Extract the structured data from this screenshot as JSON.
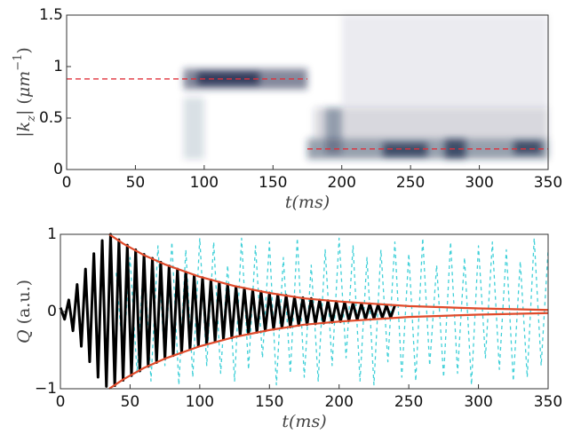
{
  "chart_data": [
    {
      "type": "heatmap",
      "xlabel": [
        {
          "text": "t(ms)",
          "italic": true
        }
      ],
      "ylabel": [
        {
          "text": "|k",
          "italic": true
        },
        {
          "text": "z",
          "italic": true,
          "shift": "sub"
        },
        {
          "text": "| (",
          "italic": false
        },
        {
          "text": "μm",
          "italic": true
        },
        {
          "text": "−1",
          "italic": false,
          "shift": "super"
        },
        {
          "text": ")",
          "italic": false
        }
      ],
      "xlim": [
        0,
        350
      ],
      "xticks": [
        0,
        50,
        100,
        150,
        200,
        250,
        300,
        350
      ],
      "ylim": [
        0,
        1.5
      ],
      "yticks": [
        0,
        0.5,
        1,
        1.5
      ],
      "color": "#1c2b4c",
      "regions": [
        {
          "x": [
            85,
            175
          ],
          "y": [
            0.78,
            0.98
          ],
          "level": 0.55
        },
        {
          "x": [
            95,
            140
          ],
          "y": [
            0.82,
            0.95
          ],
          "level": 0.8
        },
        {
          "x": [
            85,
            100
          ],
          "y": [
            0.1,
            0.7
          ],
          "level": 0.15
        },
        {
          "x": [
            175,
            350
          ],
          "y": [
            0.1,
            0.3
          ],
          "level": 0.45
        },
        {
          "x": [
            180,
            350
          ],
          "y": [
            0.3,
            0.6
          ],
          "level": 0.18
        },
        {
          "x": [
            200,
            350
          ],
          "y": [
            0.6,
            1.5
          ],
          "level": 0.08
        },
        {
          "x": [
            230,
            262
          ],
          "y": [
            0.12,
            0.26
          ],
          "level": 0.7
        },
        {
          "x": [
            275,
            290
          ],
          "y": [
            0.1,
            0.3
          ],
          "level": 0.7
        },
        {
          "x": [
            325,
            345
          ],
          "y": [
            0.15,
            0.28
          ],
          "level": 0.7
        },
        {
          "x": [
            188,
            200
          ],
          "y": [
            0.15,
            0.6
          ],
          "level": 0.35
        }
      ],
      "reference_lines": [
        {
          "x": [
            0,
            175
          ],
          "y": 0.88,
          "color": "#e0303a"
        },
        {
          "x": [
            175,
            350
          ],
          "y": 0.2,
          "color": "#e0303a"
        }
      ]
    },
    {
      "type": "line",
      "xlabel": [
        {
          "text": "t(ms)",
          "italic": true
        }
      ],
      "ylabel": [
        {
          "text": "Q",
          "italic": true
        },
        {
          "text": " (a.u.)",
          "italic": false
        }
      ],
      "xlim": [
        0,
        350
      ],
      "xticks": [
        0,
        50,
        100,
        150,
        200,
        250,
        300,
        350
      ],
      "ylim": [
        -1,
        1
      ],
      "yticks": [
        {
          "value": -1,
          "label": "−1"
        },
        0,
        1
      ],
      "series": [
        {
          "color": "#40d0d8",
          "dashed": true,
          "width": 1.3,
          "x": [
            40,
            45,
            50,
            55,
            60,
            65,
            70,
            75,
            80,
            85,
            90,
            95,
            100,
            105,
            110,
            115,
            120,
            125,
            130,
            135,
            140,
            145,
            150,
            155,
            160,
            165,
            170,
            175,
            180,
            185,
            190,
            195,
            200,
            205,
            210,
            215,
            220,
            225,
            230,
            235,
            240,
            245,
            250,
            255,
            260,
            265,
            270,
            275,
            280,
            285,
            290,
            295,
            300,
            305,
            310,
            315,
            320,
            325,
            330,
            335,
            340,
            345,
            350
          ],
          "values": [
            0.5,
            -0.6,
            0.7,
            -0.8,
            0.75,
            -0.9,
            0.85,
            -0.7,
            0.9,
            -0.95,
            0.8,
            -0.85,
            0.95,
            -0.7,
            0.9,
            -0.8,
            0.6,
            -0.9,
            0.95,
            -0.75,
            0.85,
            -0.6,
            0.9,
            -0.95,
            0.7,
            -0.8,
            0.95,
            -0.85,
            0.6,
            -0.9,
            0.8,
            -0.7,
            0.95,
            -0.6,
            0.85,
            -0.9,
            0.7,
            -0.95,
            0.8,
            -0.65,
            0.9,
            -0.85,
            0.75,
            -0.9,
            0.95,
            -0.7,
            0.6,
            -0.85,
            0.9,
            -0.8,
            0.7,
            -0.95,
            0.85,
            -0.6,
            0.9,
            -0.75,
            0.8,
            -0.9,
            0.65,
            -0.85,
            0.95,
            -0.7,
            0.8
          ]
        },
        {
          "color": "#000000",
          "dashed": false,
          "width": 3,
          "x": [
            0,
            3,
            6,
            9,
            12,
            15,
            18,
            21,
            24,
            27,
            30,
            33,
            36,
            39,
            42,
            45,
            48,
            51,
            54,
            57,
            60,
            63,
            66,
            69,
            72,
            75,
            78,
            81,
            84,
            87,
            90,
            93,
            96,
            99,
            102,
            105,
            108,
            111,
            114,
            117,
            120,
            123,
            126,
            129,
            132,
            135,
            138,
            141,
            144,
            147,
            150,
            153,
            156,
            159,
            162,
            165,
            168,
            171,
            174,
            177,
            180,
            183,
            186,
            189,
            192,
            195,
            198,
            201,
            204,
            207,
            210,
            213,
            216,
            219,
            222,
            225,
            228,
            231,
            234,
            237,
            240
          ],
          "values": [
            0.05,
            -0.1,
            0.15,
            -0.25,
            0.35,
            -0.45,
            0.55,
            -0.65,
            0.75,
            -0.85,
            0.92,
            -0.97,
            1.0,
            -0.96,
            0.93,
            -0.89,
            0.86,
            -0.83,
            0.8,
            -0.77,
            0.74,
            -0.71,
            0.69,
            -0.66,
            0.64,
            -0.61,
            0.59,
            -0.57,
            0.55,
            -0.53,
            0.51,
            -0.49,
            0.47,
            -0.45,
            0.44,
            -0.42,
            0.41,
            -0.39,
            0.38,
            -0.36,
            0.35,
            -0.34,
            0.32,
            -0.31,
            0.3,
            -0.29,
            0.28,
            -0.27,
            0.26,
            -0.25,
            0.24,
            -0.23,
            0.22,
            -0.21,
            0.21,
            -0.2,
            0.19,
            -0.18,
            0.18,
            -0.17,
            0.17,
            -0.16,
            0.15,
            -0.15,
            0.14,
            -0.14,
            0.13,
            -0.13,
            0.12,
            -0.12,
            0.11,
            -0.11,
            0.1,
            -0.1,
            0.1,
            -0.09,
            0.09,
            -0.08,
            0.08,
            -0.08,
            0.08
          ]
        },
        {
          "color": "#e04a2a",
          "dashed": false,
          "width": 2.2,
          "x": [
            35,
            40,
            45,
            50,
            60,
            75,
            100,
            125,
            150,
            175,
            200,
            250,
            300,
            350
          ],
          "values": [
            1,
            0.94,
            0.88,
            0.83,
            0.73,
            0.61,
            0.45,
            0.33,
            0.24,
            0.17,
            0.13,
            0.07,
            0.04,
            0.02
          ]
        },
        {
          "color": "#e04a2a",
          "dashed": false,
          "width": 2.2,
          "x": [
            35,
            40,
            45,
            50,
            60,
            75,
            100,
            125,
            150,
            175,
            200,
            250,
            300,
            350
          ],
          "values": [
            -1,
            -0.94,
            -0.88,
            -0.83,
            -0.73,
            -0.61,
            -0.45,
            -0.33,
            -0.24,
            -0.17,
            -0.13,
            -0.07,
            -0.04,
            -0.02
          ]
        }
      ]
    }
  ]
}
